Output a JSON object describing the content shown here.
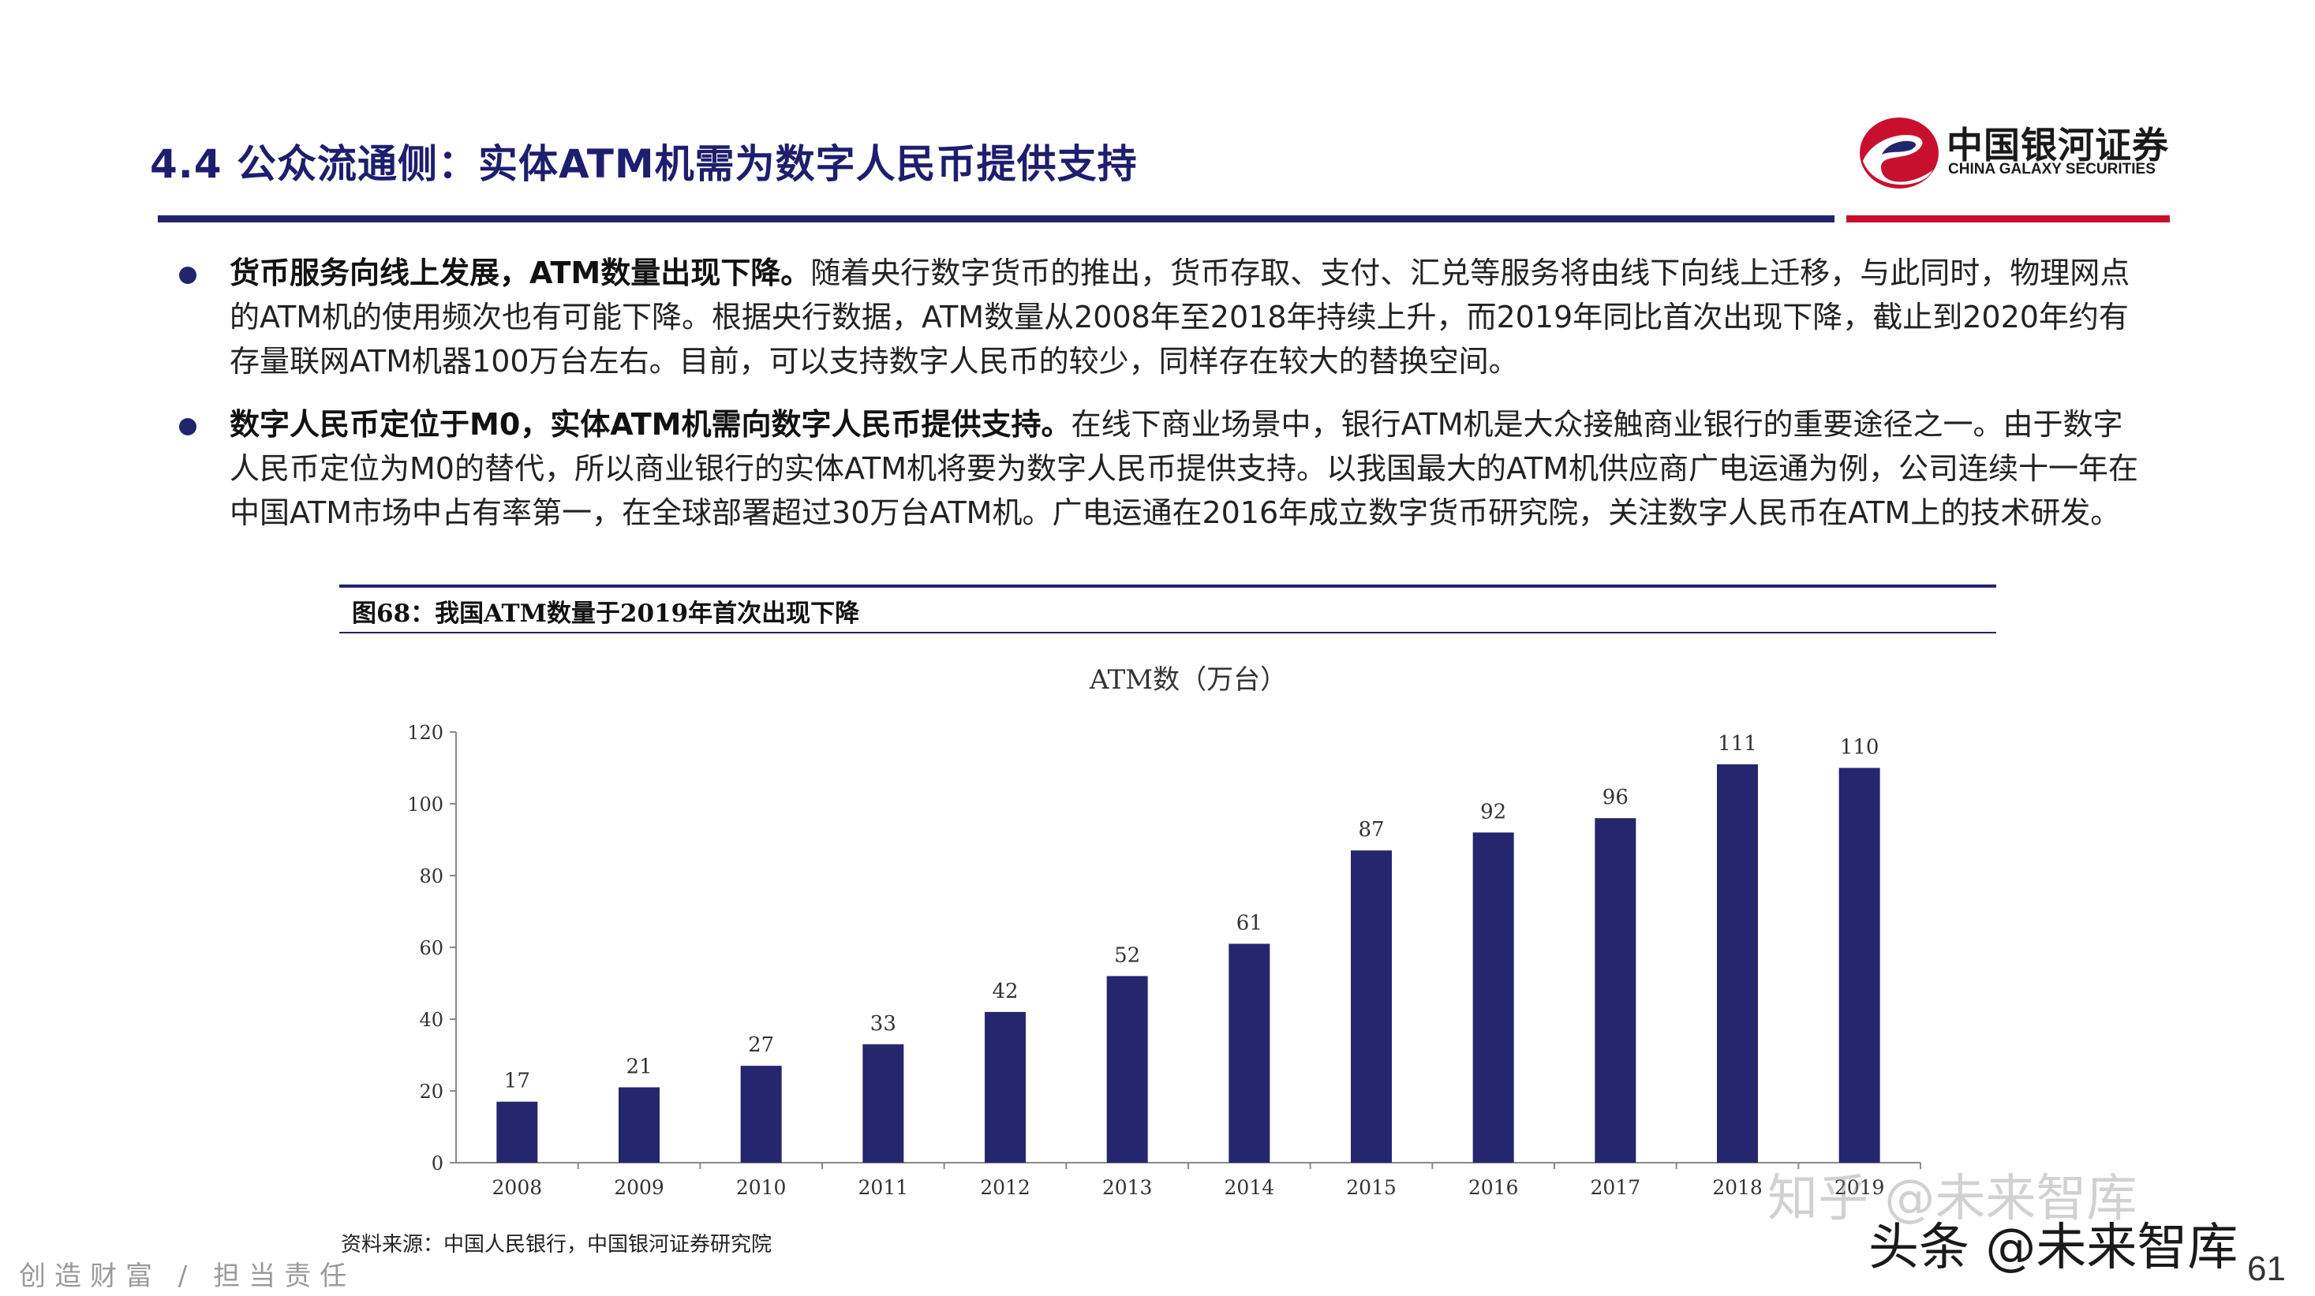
{
  "slide": {
    "title": "4.4  公众流通侧：实体ATM机需为数字人民币提供支持",
    "logo_cn": "中国银河证券",
    "logo_en": "CHINA GALAXY SECURITIES"
  },
  "colors": {
    "navy": "#23246e",
    "red": "#c8102e",
    "bar": "#26266e"
  },
  "bullets": [
    {
      "bold": "货币服务向线上发展，ATM数量出现下降。",
      "text": "随着央行数字货币的推出，货币存取、支付、汇兑等服务将由线下向线上迁移，与此同时，物理网点的ATM机的使用频次也有可能下降。根据央行数据，ATM数量从2008年至2018年持续上升，而2019年同比首次出现下降，截止到2020年约有存量联网ATM机器100万台左右。目前，可以支持数字人民币的较少，同样存在较大的替换空间。"
    },
    {
      "bold": "数字人民币定位于M0，实体ATM机需向数字人民币提供支持。",
      "text": "在线下商业场景中，银行ATM机是大众接触商业银行的重要途径之一。由于数字人民币定位为M0的替代，所以商业银行的实体ATM机将要为数字人民币提供支持。以我国最大的ATM机供应商广电运通为例，公司连续十一年在中国ATM市场中占有率第一，在全球部署超过30万台ATM机。广电运通在2016年成立数字货币研究院，关注数字人民币在ATM上的技术研发。"
    }
  ],
  "figure": {
    "caption": "图68：我国ATM数量于2019年首次出现下降",
    "source": "资料来源：中国人民银行，中国银河证券研究院"
  },
  "chart_data": {
    "type": "bar",
    "title": "ATM数（万台）",
    "categories": [
      "2008",
      "2009",
      "2010",
      "2011",
      "2012",
      "2013",
      "2014",
      "2015",
      "2016",
      "2017",
      "2018",
      "2019"
    ],
    "values": [
      17,
      21,
      27,
      33,
      42,
      52,
      61,
      87,
      92,
      96,
      111,
      110
    ],
    "ylim": [
      0,
      120
    ],
    "yticks": [
      0,
      20,
      40,
      60,
      80,
      100,
      120
    ],
    "xlabel": "",
    "ylabel": "",
    "grid": false,
    "legend": "none"
  },
  "footer": {
    "slogan": "创造财富 / 担当责任",
    "page_number": "61"
  },
  "watermarks": {
    "zhihu": "知乎 @未来智库",
    "toutiao": "头条 @未来智库"
  }
}
